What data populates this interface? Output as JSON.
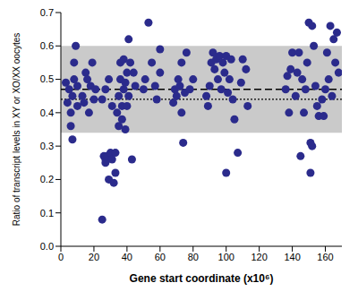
{
  "chart_data": {
    "type": "scatter",
    "x_label": "Gene start coordinate (x10⁶)",
    "y_label": "Ratio of transcript levels in XY or XO/XX oocytes",
    "color": "#2b2b8c",
    "marker": "circle",
    "grid": false,
    "xlim": [
      0,
      170
    ],
    "xticks": [
      0,
      20,
      40,
      60,
      80,
      100,
      120,
      140,
      160
    ],
    "ylim": [
      0,
      0.7
    ],
    "yticks": [
      {
        "value": 0,
        "label": "0.0"
      },
      0.1,
      0.2,
      0.3,
      0.4,
      0.5,
      0.6,
      0.7
    ],
    "band": [
      0.34,
      0.6
    ],
    "dashed_line": 0.47,
    "dotted_line": 0.44,
    "x": [
      3,
      4,
      5,
      6,
      6,
      7,
      7,
      8,
      8,
      9,
      10,
      10,
      13,
      14,
      15,
      16,
      17,
      18,
      19,
      20,
      21,
      25,
      26,
      27,
      27,
      28,
      29,
      30,
      31,
      32,
      33,
      33,
      25,
      27,
      29,
      31,
      34,
      35,
      35,
      36,
      36,
      37,
      37,
      38,
      38,
      39,
      39,
      40,
      40,
      41,
      41,
      42,
      43,
      44,
      45,
      50,
      51,
      53,
      55,
      57,
      58,
      60,
      60,
      68,
      69,
      70,
      71,
      72,
      73,
      73,
      74,
      75,
      76,
      78,
      80,
      88,
      89,
      90,
      91,
      92,
      93,
      94,
      95,
      96,
      97,
      98,
      99,
      100,
      100,
      101,
      102,
      103,
      104,
      105,
      107,
      109,
      110,
      112,
      113,
      136,
      137,
      138,
      139,
      140,
      142,
      143,
      144,
      145,
      146,
      147,
      148,
      149,
      150,
      151,
      151,
      152,
      152,
      153,
      154,
      155,
      156,
      158,
      159,
      160,
      161,
      162,
      163,
      164,
      165,
      166,
      167,
      168
    ],
    "values": [
      0.49,
      0.43,
      0.47,
      0.4,
      0.36,
      0.32,
      0.45,
      0.5,
      0.55,
      0.6,
      0.48,
      0.42,
      0.45,
      0.43,
      0.52,
      0.5,
      0.4,
      0.48,
      0.55,
      0.44,
      0.47,
      0.08,
      0.27,
      0.26,
      0.25,
      0.27,
      0.2,
      0.28,
      0.26,
      0.19,
      0.22,
      0.28,
      0.44,
      0.47,
      0.5,
      0.42,
      0.4,
      0.36,
      0.45,
      0.55,
      0.5,
      0.42,
      0.38,
      0.47,
      0.56,
      0.49,
      0.35,
      0.42,
      0.52,
      0.62,
      0.45,
      0.55,
      0.26,
      0.52,
      0.48,
      0.47,
      0.5,
      0.67,
      0.55,
      0.48,
      0.44,
      0.59,
      0.52,
      0.43,
      0.47,
      0.45,
      0.5,
      0.48,
      0.55,
      0.4,
      0.31,
      0.46,
      0.58,
      0.47,
      0.5,
      0.45,
      0.42,
      0.48,
      0.55,
      0.58,
      0.53,
      0.56,
      0.5,
      0.57,
      0.47,
      0.55,
      0.52,
      0.57,
      0.22,
      0.46,
      0.5,
      0.56,
      0.44,
      0.38,
      0.28,
      0.49,
      0.56,
      0.53,
      0.42,
      0.47,
      0.51,
      0.4,
      0.53,
      0.58,
      0.45,
      0.52,
      0.58,
      0.27,
      0.5,
      0.4,
      0.47,
      0.55,
      0.67,
      0.31,
      0.22,
      0.66,
      0.3,
      0.6,
      0.48,
      0.42,
      0.39,
      0.44,
      0.39,
      0.47,
      0.58,
      0.5,
      0.66,
      0.45,
      0.62,
      0.55,
      0.64,
      0.52
    ]
  }
}
